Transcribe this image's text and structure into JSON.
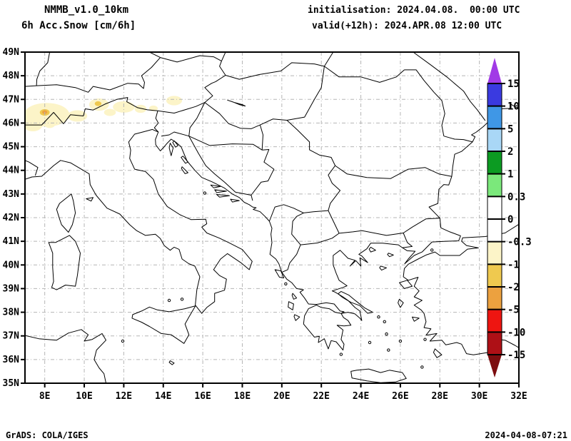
{
  "header": {
    "model": "NMMB_v1.0_10km",
    "product": "6h Acc.Snow [cm/6h]",
    "initialisation": "initialisation: 2024.04.08.  00:00 UTC",
    "valid": "valid(+12h): 2024.APR.08 12:00 UTC"
  },
  "footer": {
    "left": "GrADS: COLA/IGES",
    "right": "2024-04-08-07:21"
  },
  "map": {
    "lon_min": 7.0,
    "lon_max": 32.0,
    "lat_min": 35.0,
    "lat_max": 49.0,
    "grid_color": "#b5b5b5",
    "coast_color": "#000000",
    "x_ticks": [
      {
        "lon": 8,
        "label": "8E"
      },
      {
        "lon": 10,
        "label": "10E"
      },
      {
        "lon": 12,
        "label": "12E"
      },
      {
        "lon": 14,
        "label": "14E"
      },
      {
        "lon": 16,
        "label": "16E"
      },
      {
        "lon": 18,
        "label": "18E"
      },
      {
        "lon": 20,
        "label": "20E"
      },
      {
        "lon": 22,
        "label": "22E"
      },
      {
        "lon": 24,
        "label": "24E"
      },
      {
        "lon": 26,
        "label": "26E"
      },
      {
        "lon": 28,
        "label": "28E"
      },
      {
        "lon": 30,
        "label": "30E"
      },
      {
        "lon": 32,
        "label": "32E"
      }
    ],
    "y_ticks": [
      {
        "lat": 49,
        "label": "49N"
      },
      {
        "lat": 48,
        "label": "48N"
      },
      {
        "lat": 47,
        "label": "47N"
      },
      {
        "lat": 46,
        "label": "46N"
      },
      {
        "lat": 45,
        "label": "45N"
      },
      {
        "lat": 44,
        "label": "44N"
      },
      {
        "lat": 43,
        "label": "43N"
      },
      {
        "lat": 42,
        "label": "42N"
      },
      {
        "lat": 41,
        "label": "41N"
      },
      {
        "lat": 40,
        "label": "40N"
      },
      {
        "lat": 39,
        "label": "39N"
      },
      {
        "lat": 38,
        "label": "38N"
      },
      {
        "lat": 37,
        "label": "37N"
      },
      {
        "lat": 36,
        "label": "36N"
      },
      {
        "lat": 35,
        "label": "35N"
      }
    ]
  },
  "colorbar": {
    "levels": [
      "15",
      "10",
      "5",
      "2",
      "1",
      "0.3",
      "0",
      "-0.3",
      "-1",
      "-2",
      "-5",
      "-10",
      "-15"
    ],
    "segment_colors": [
      "#3A3AE0",
      "#3F97E6",
      "#A9D7F6",
      "#0C9B22",
      "#7BE87B",
      "#FFFFFF",
      "#FFFFFF",
      "#FCF4C8",
      "#EFC94F",
      "#ECA13F",
      "#EE1511",
      "#AE1016"
    ],
    "above_color": "#A13AE6",
    "below_color": "#7C0D0F"
  },
  "snow_patches": [
    {
      "lon": 8.1,
      "lat": 46.35,
      "rx": 1.15,
      "ry": 0.5,
      "value": "-0.3 to -1",
      "color": "#FCF4C8"
    },
    {
      "lon": 7.4,
      "lat": 45.95,
      "rx": 0.5,
      "ry": 0.3,
      "value": "-0.3 to -1",
      "color": "#FCF4C8"
    },
    {
      "lon": 9.65,
      "lat": 46.3,
      "rx": 0.5,
      "ry": 0.24,
      "value": "-0.3 to -1",
      "color": "#FCF4C8"
    },
    {
      "lon": 8.25,
      "lat": 45.95,
      "rx": 0.28,
      "ry": 0.16,
      "value": "-0.3 to -1",
      "color": "#FCF4C8"
    },
    {
      "lon": 8.0,
      "lat": 46.45,
      "rx": 0.25,
      "ry": 0.14,
      "value": "-1 to -2",
      "color": "#EFC94F"
    },
    {
      "lon": 8.0,
      "lat": 46.46,
      "rx": 0.13,
      "ry": 0.08,
      "value": "-2 to -5",
      "color": "#ECA13F"
    },
    {
      "lon": 10.75,
      "lat": 46.78,
      "rx": 0.5,
      "ry": 0.26,
      "value": "-0.3 to -1",
      "color": "#FCF4C8"
    },
    {
      "lon": 10.7,
      "lat": 46.82,
      "rx": 0.17,
      "ry": 0.1,
      "value": "-1 to -2",
      "color": "#EFC94F"
    },
    {
      "lon": 11.3,
      "lat": 46.45,
      "rx": 0.3,
      "ry": 0.15,
      "value": "-0.3 to -1",
      "color": "#FCF4C8"
    },
    {
      "lon": 12.0,
      "lat": 46.68,
      "rx": 0.55,
      "ry": 0.24,
      "value": "-0.3 to -1",
      "color": "#FCF4C8"
    },
    {
      "lon": 12.85,
      "lat": 46.6,
      "rx": 0.3,
      "ry": 0.17,
      "value": "-0.3 to -1",
      "color": "#FCF4C8"
    },
    {
      "lon": 13.5,
      "lat": 46.62,
      "rx": 0.22,
      "ry": 0.12,
      "value": "-0.3 to -1",
      "color": "#FCF4C8"
    },
    {
      "lon": 14.55,
      "lat": 46.95,
      "rx": 0.4,
      "ry": 0.2,
      "value": "-0.3 to -1",
      "color": "#FCF4C8"
    }
  ]
}
